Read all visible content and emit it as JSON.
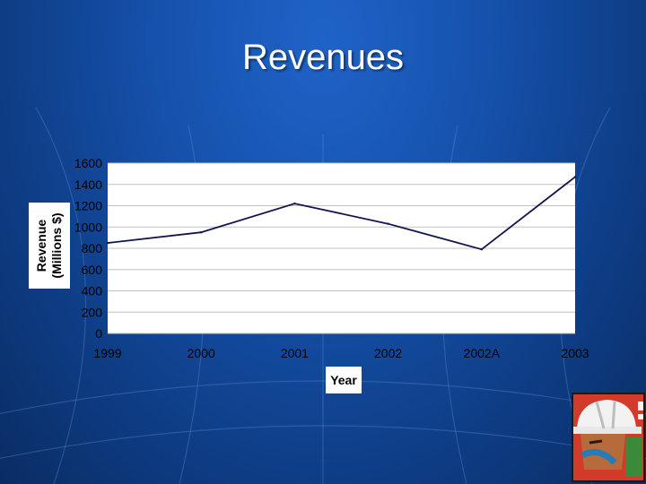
{
  "slide": {
    "title": "Revenues"
  },
  "chart_data": {
    "type": "line",
    "title": "",
    "categories": [
      "1999",
      "2000",
      "2001",
      "2002",
      "2002A",
      "2003"
    ],
    "series": [
      {
        "values": [
          850,
          950,
          1220,
          1030,
          790,
          1470
        ]
      }
    ],
    "xlabel": "Year",
    "ylabel_lines": [
      "Revenue",
      "(Millions $)"
    ],
    "ylim": [
      0,
      1600
    ],
    "yticks": [
      "0",
      "200",
      "400",
      "600",
      "800",
      "1000",
      "1200",
      "1400",
      "1600"
    ],
    "grid": true,
    "legend": "none",
    "colors": {
      "line": "#141450",
      "plot_bg": "#ffffff",
      "grid": "#c0c0c0"
    }
  },
  "decor": {
    "corner_icon": "construction-worker-hardhat-icon"
  }
}
